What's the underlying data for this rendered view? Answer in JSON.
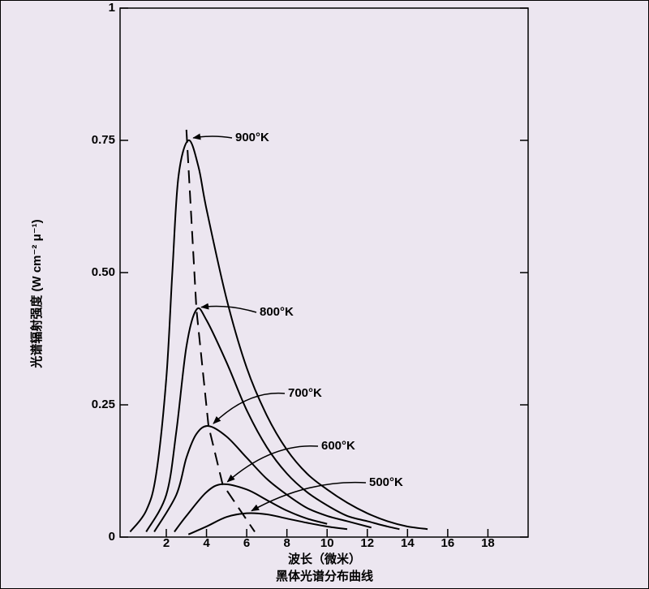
{
  "chart_data": {
    "type": "line",
    "y_label": "光谱辐射强度 (W cm⁻² μ⁻¹)",
    "x_label": "波长（微米）",
    "title": "黑体光谱分布曲线",
    "xlim": [
      -0.3,
      20
    ],
    "xticks": [
      2,
      4,
      6,
      8,
      10,
      12,
      14,
      16,
      18
    ],
    "ylim": [
      0,
      1
    ],
    "yticks": [
      0,
      {
        "value": 0.25,
        "label": "0.25"
      },
      {
        "value": 0.5,
        "label": "0.50"
      },
      {
        "value": 0.75,
        "label": "0.75"
      },
      1
    ],
    "grid": false,
    "series": [
      {
        "name": "900°K",
        "color": "#000000",
        "x": [
          0.2,
          1,
          1.5,
          2,
          2.3,
          2.6,
          3.1,
          3.6,
          4,
          5,
          6,
          7,
          8,
          9,
          10,
          11,
          12,
          13,
          14,
          15
        ],
        "values": [
          0.01,
          0.05,
          0.12,
          0.3,
          0.5,
          0.68,
          0.75,
          0.7,
          0.62,
          0.45,
          0.32,
          0.23,
          0.165,
          0.12,
          0.09,
          0.065,
          0.045,
          0.03,
          0.02,
          0.015
        ]
      },
      {
        "name": "800°K",
        "color": "#000000",
        "x": [
          1,
          2,
          2.5,
          3,
          3.5,
          4,
          5,
          6,
          7,
          8,
          9,
          10,
          11,
          12,
          13,
          13.6
        ],
        "values": [
          0.01,
          0.08,
          0.2,
          0.36,
          0.43,
          0.41,
          0.33,
          0.24,
          0.17,
          0.12,
          0.085,
          0.06,
          0.04,
          0.03,
          0.02,
          0.015
        ]
      },
      {
        "name": "700°K",
        "color": "#000000",
        "x": [
          1.4,
          2.5,
          3,
          3.5,
          4.1,
          5,
          6,
          7,
          8,
          9,
          10,
          11,
          12.2
        ],
        "values": [
          0.01,
          0.08,
          0.15,
          0.195,
          0.21,
          0.19,
          0.15,
          0.11,
          0.08,
          0.055,
          0.04,
          0.03,
          0.018
        ]
      },
      {
        "name": "600°K",
        "color": "#000000",
        "x": [
          2.4,
          3,
          4,
          4.8,
          6,
          7,
          8,
          9,
          10
        ],
        "values": [
          0.01,
          0.04,
          0.085,
          0.1,
          0.09,
          0.07,
          0.05,
          0.035,
          0.025
        ]
      },
      {
        "name": "500°K",
        "color": "#000000",
        "x": [
          3.1,
          4,
          5,
          6,
          7,
          8,
          9,
          10,
          11
        ],
        "values": [
          0.005,
          0.02,
          0.038,
          0.045,
          0.043,
          0.035,
          0.027,
          0.02,
          0.015
        ]
      }
    ],
    "peak_locus": {
      "style": "dashed",
      "x": [
        3.0,
        3.5,
        4.1,
        4.8,
        6.4
      ],
      "y": [
        0.77,
        0.43,
        0.21,
        0.1,
        0.01
      ]
    }
  }
}
